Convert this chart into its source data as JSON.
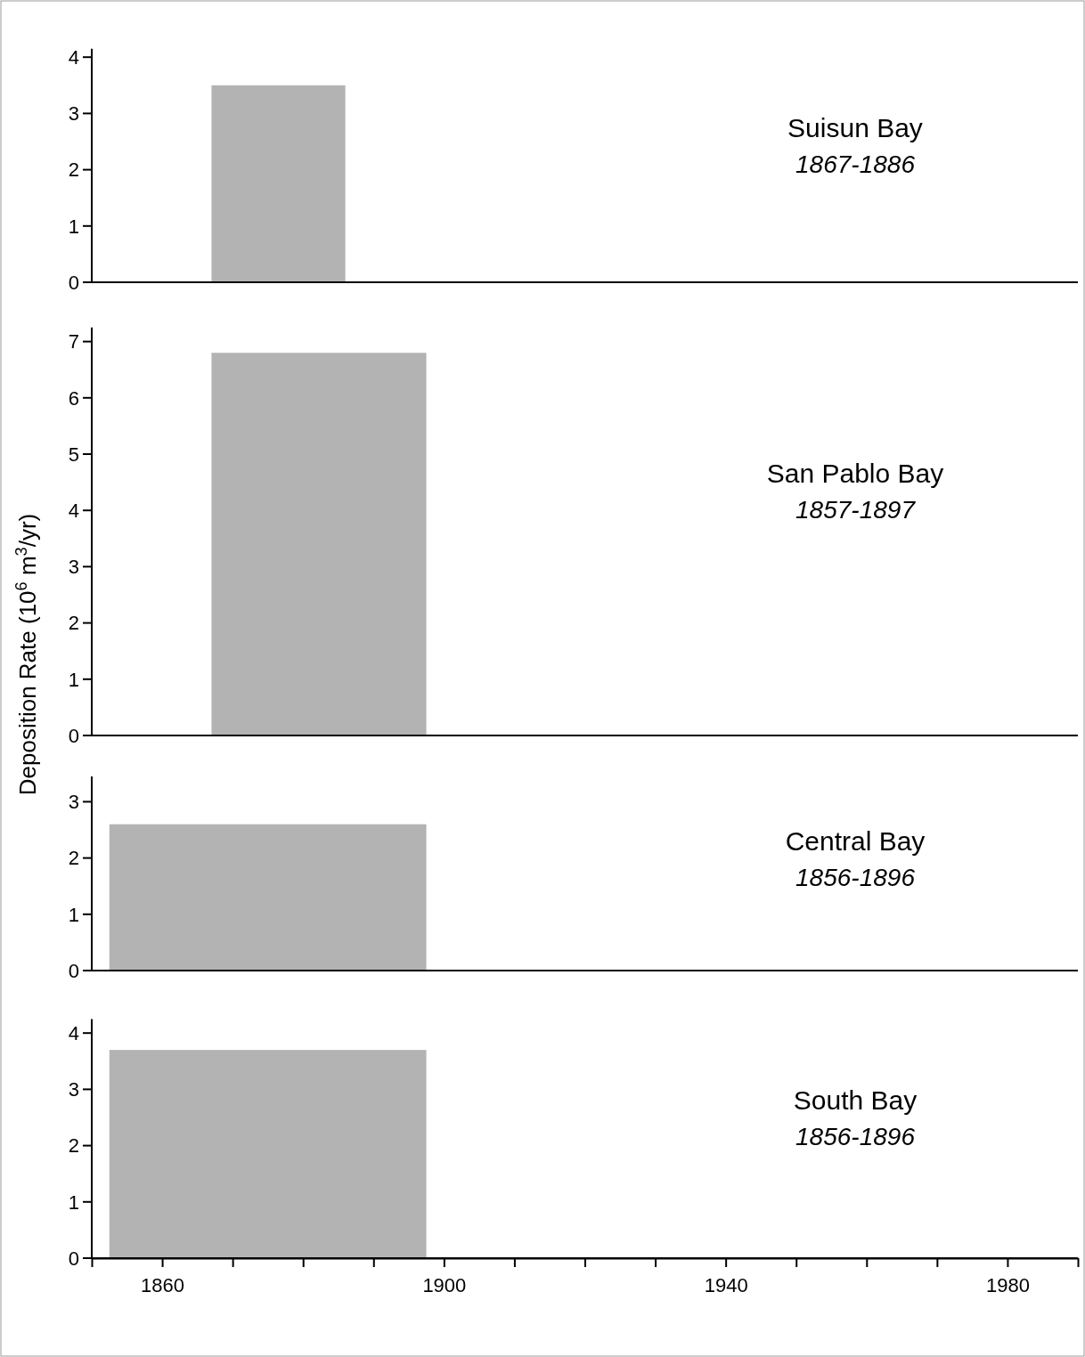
{
  "chart_data": [
    {
      "type": "histogram",
      "title": "Suisun Bay",
      "subtitle": "1867-1886",
      "bins": [
        1867,
        1886
      ],
      "values": [
        3.5
      ],
      "color": "#b3b3b3",
      "xlim": [
        1850,
        1990
      ],
      "ylim": [
        0,
        4.15
      ],
      "yticks": [
        0,
        1,
        2,
        3,
        4
      ],
      "tick_labels": "y",
      "grid": false
    },
    {
      "type": "histogram",
      "title": "San Pablo Bay",
      "subtitle": "1857-1897",
      "ylabel": "Deposition Rate (10$^{6}$ m$^{3}$/yr)",
      "bins": [
        1867,
        1897.5
      ],
      "values": [
        6.8
      ],
      "color": "#b3b3b3",
      "xlim": [
        1850,
        1990
      ],
      "ylim": [
        0,
        7.25
      ],
      "yticks": [
        0,
        1,
        2,
        3,
        4,
        5,
        6,
        7
      ],
      "tick_labels": "y",
      "grid": false
    },
    {
      "type": "histogram",
      "title": "Central Bay",
      "subtitle": "1856-1896",
      "bins": [
        1852.5,
        1897.5
      ],
      "values": [
        2.6
      ],
      "color": "#b3b3b3",
      "xlim": [
        1850,
        1990
      ],
      "ylim": [
        0,
        3.45
      ],
      "yticks": [
        0,
        1,
        2,
        3
      ],
      "tick_labels": "y",
      "grid": false
    },
    {
      "type": "histogram",
      "title": "South Bay",
      "subtitle": "1856-1896",
      "bins": [
        1852.5,
        1897.5
      ],
      "values": [
        3.7
      ],
      "color": "#b3b3b3",
      "xlim": [
        1850,
        1990
      ],
      "ylim": [
        0,
        4.25
      ],
      "yticks": [
        0,
        1,
        2,
        3,
        4
      ],
      "xticks": [
        {
          "value": 1850,
          "label": null
        },
        1860,
        {
          "value": 1870,
          "label": null
        },
        {
          "value": 1880,
          "label": null
        },
        {
          "value": 1890,
          "label": null
        },
        1900,
        {
          "value": 1910,
          "label": null
        },
        {
          "value": 1920,
          "label": null
        },
        {
          "value": 1930,
          "label": null
        },
        1940,
        {
          "value": 1950,
          "label": null
        },
        {
          "value": 1960,
          "label": null
        },
        {
          "value": 1970,
          "label": null
        },
        1980,
        {
          "value": 1990,
          "label": null
        }
      ],
      "grid": false
    }
  ]
}
